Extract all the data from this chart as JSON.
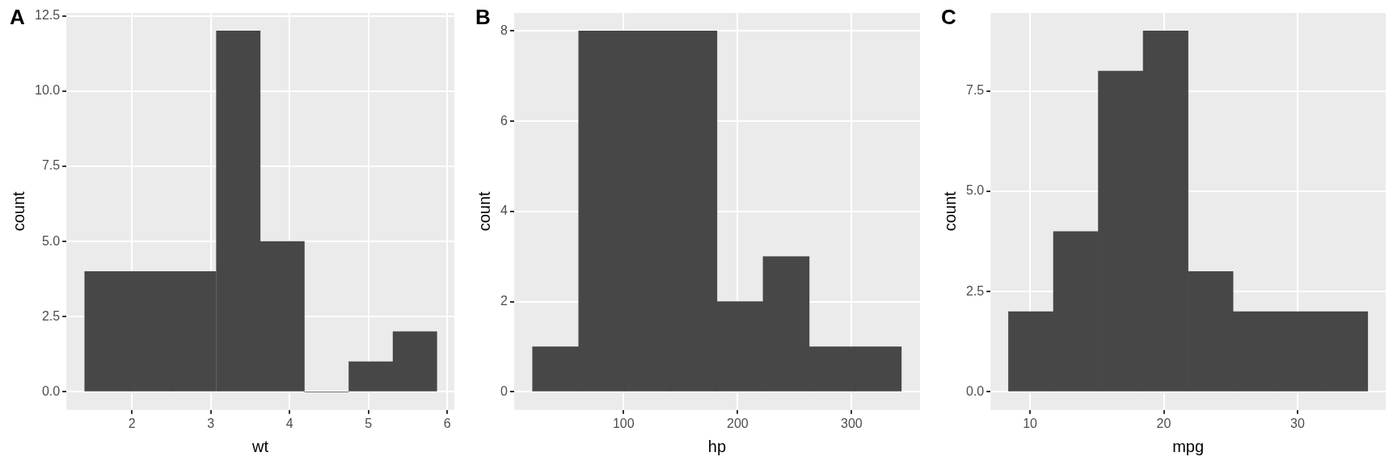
{
  "chart_data": [
    {
      "type": "histogram",
      "title": "A",
      "xlabel": "wt",
      "ylabel": "count",
      "color": "#474747",
      "grid": true,
      "legend": false,
      "bins": [
        1.4,
        1.96,
        2.51,
        3.07,
        3.63,
        4.19,
        4.75,
        5.31,
        5.87
      ],
      "values": [
        4,
        4,
        4,
        12,
        5,
        0,
        1,
        2
      ],
      "xlim": [
        1.17,
        6.09
      ],
      "xticks": [
        2,
        3,
        4,
        5,
        6
      ],
      "ylim": [
        -0.6,
        12.6
      ],
      "yticks": [
        {
          "value": 0,
          "label": "0.0"
        },
        {
          "value": 2.5,
          "label": "2.5"
        },
        {
          "value": 5,
          "label": "5.0"
        },
        {
          "value": 7.5,
          "label": "7.5"
        },
        {
          "value": 10,
          "label": "10.0"
        },
        {
          "value": 12.5,
          "label": "12.5"
        }
      ]
    },
    {
      "type": "histogram",
      "title": "B",
      "xlabel": "hp",
      "ylabel": "count",
      "color": "#474747",
      "grid": true,
      "legend": false,
      "bins": [
        20.2,
        60.6,
        101.1,
        141.5,
        181.9,
        222.4,
        262.8,
        303.2,
        343.6
      ],
      "values": [
        1,
        8,
        8,
        8,
        2,
        3,
        1,
        1
      ],
      "xlim": [
        4,
        360
      ],
      "xticks": [
        100,
        200,
        300
      ],
      "ylim": [
        -0.4,
        8.4
      ],
      "yticks": [
        0,
        2,
        4,
        6,
        8
      ]
    },
    {
      "type": "histogram",
      "title": "C",
      "xlabel": "mpg",
      "ylabel": "count",
      "color": "#474747",
      "grid": true,
      "legend": false,
      "bins": [
        8.39,
        11.75,
        15.11,
        18.46,
        21.82,
        25.18,
        28.54,
        31.89,
        35.25
      ],
      "values": [
        2,
        4,
        8,
        9,
        3,
        2,
        2,
        2
      ],
      "xlim": [
        7.05,
        36.59
      ],
      "xticks": [
        10,
        20,
        30
      ],
      "ylim": [
        -0.45,
        9.45
      ],
      "yticks": [
        {
          "value": 0,
          "label": "0.0"
        },
        {
          "value": 2.5,
          "label": "2.5"
        },
        {
          "value": 5,
          "label": "5.0"
        },
        {
          "value": 7.5,
          "label": "7.5"
        }
      ]
    }
  ]
}
